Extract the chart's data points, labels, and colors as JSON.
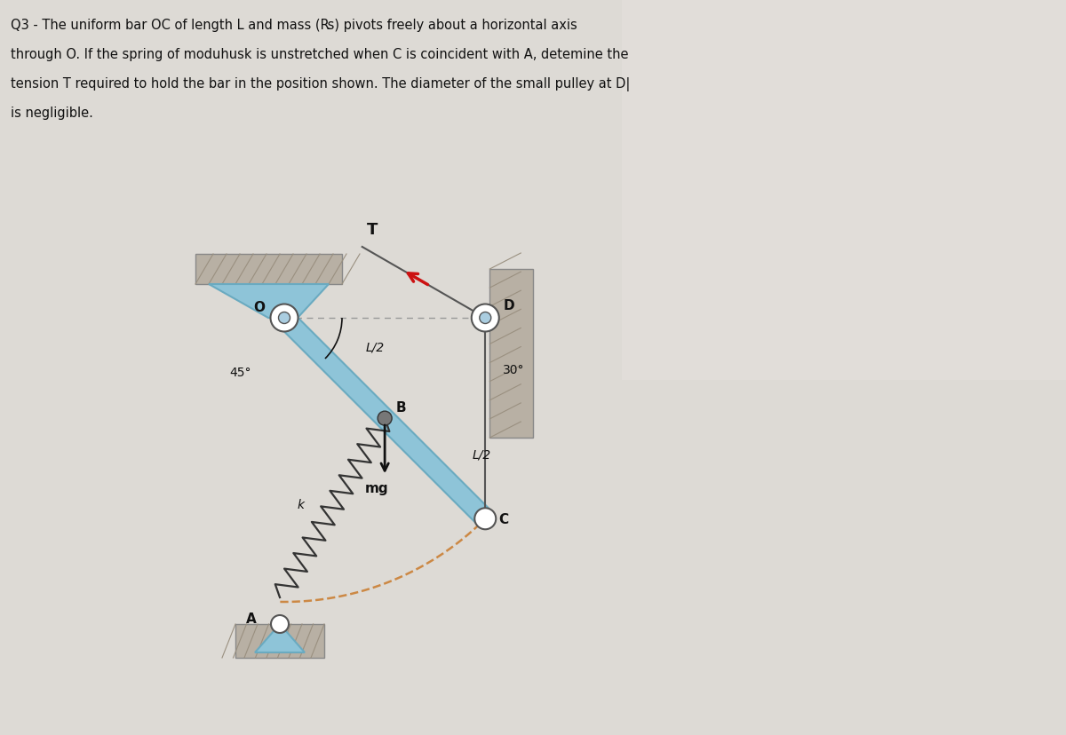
{
  "bg_color": "#dddad5",
  "bar_color": "#8ec4d8",
  "bar_edge_color": "#6aaac0",
  "wall_color": "#9a9080",
  "wall_fill": "#b8b0a4",
  "spring_color": "#333333",
  "rope_color": "#555555",
  "dashed_color": "#cc8844",
  "arrow_color": "#cc1111",
  "text_color": "#111111",
  "scale": 1.0,
  "O_label": "O",
  "D_label": "D",
  "A_label": "A",
  "B_label": "B",
  "C_label": "C",
  "T_label": "T",
  "mg_label": "mg",
  "angle45_label": "45°",
  "angle30_label": "30°",
  "Lhalf1": "L/2",
  "Lhalf2": "L/2"
}
